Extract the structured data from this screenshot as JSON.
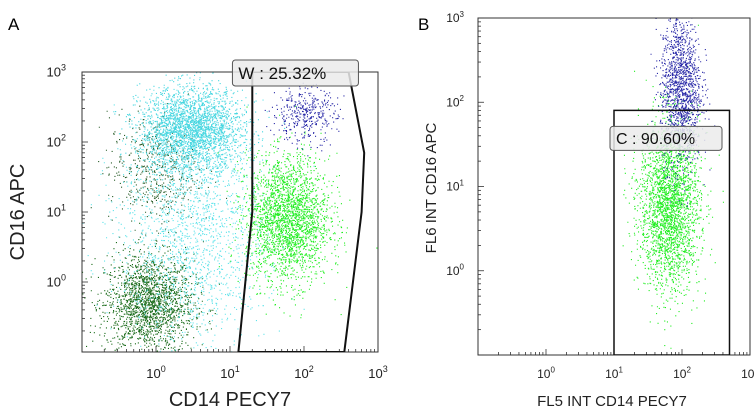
{
  "chart_data": [
    {
      "panel": "A",
      "type": "scatter",
      "xlabel": "CD14 PECY7",
      "ylabel": "CD16 APC",
      "xscale": "log",
      "yscale": "log",
      "xlim": [
        0.1,
        1000
      ],
      "ylim": [
        0.1,
        1000
      ],
      "xticks": [
        {
          "value": 1,
          "base": "10",
          "exp": "0"
        },
        {
          "value": 10,
          "base": "10",
          "exp": "1"
        },
        {
          "value": 100,
          "base": "10",
          "exp": "2"
        },
        {
          "value": 1000,
          "base": "10",
          "exp": "3"
        }
      ],
      "yticks": [
        {
          "value": 1,
          "base": "10",
          "exp": "0"
        },
        {
          "value": 10,
          "base": "10",
          "exp": "1"
        },
        {
          "value": 100,
          "base": "10",
          "exp": "2"
        },
        {
          "value": 1000,
          "base": "10",
          "exp": "3"
        }
      ],
      "populations": [
        {
          "color": "#1a6b1a",
          "count": 1900,
          "center": [
            0.8,
            0.5
          ],
          "spread": [
            0.3,
            0.35
          ]
        },
        {
          "color": "#2a5e2a",
          "count": 500,
          "center": [
            0.9,
            40
          ],
          "spread": [
            0.3,
            0.4
          ]
        },
        {
          "color": "#45d6e0",
          "count": 2600,
          "center": [
            3,
            150
          ],
          "spread": [
            0.35,
            0.3
          ]
        },
        {
          "color": "#5fe3ea",
          "count": 1700,
          "center": [
            3,
            5
          ],
          "spread": [
            0.5,
            0.8
          ]
        },
        {
          "color": "#22ee22",
          "count": 2400,
          "center": [
            60,
            8
          ],
          "spread": [
            0.28,
            0.45
          ]
        },
        {
          "color": "#2a2aa8",
          "count": 380,
          "center": [
            100,
            250
          ],
          "spread": [
            0.22,
            0.2
          ]
        }
      ],
      "gates": [
        {
          "label": "W : 25.32%",
          "polygon": [
            [
              20,
              1000
            ],
            [
              400,
              1000
            ],
            [
              650,
              70
            ],
            [
              600,
              10
            ],
            [
              350,
              0.1
            ],
            [
              13,
              0.1
            ],
            [
              20,
              10
            ]
          ]
        }
      ]
    },
    {
      "panel": "B",
      "type": "scatter",
      "xlabel": "FL5 INT CD14 PECY7",
      "ylabel": "FL6 INT CD16 APC",
      "xscale": "log",
      "yscale": "log",
      "xlim": [
        0.1,
        1000
      ],
      "ylim": [
        0.1,
        1000
      ],
      "xticks": [
        {
          "value": 1,
          "base": "10",
          "exp": "0"
        },
        {
          "value": 10,
          "base": "10",
          "exp": "1"
        },
        {
          "value": 100,
          "base": "10",
          "exp": "2"
        },
        {
          "value": 1000,
          "base": "10",
          "exp": "3"
        }
      ],
      "yticks": [
        {
          "value": 1,
          "base": "10",
          "exp": "0"
        },
        {
          "value": 10,
          "base": "10",
          "exp": "1"
        },
        {
          "value": 100,
          "base": "10",
          "exp": "2"
        },
        {
          "value": 1000,
          "base": "10",
          "exp": "3"
        }
      ],
      "populations": [
        {
          "color": "#22ee22",
          "count": 2600,
          "center": [
            65,
            6
          ],
          "spread": [
            0.22,
            0.5
          ]
        },
        {
          "color": "#2a2aa8",
          "count": 1400,
          "center": [
            95,
            150
          ],
          "spread": [
            0.15,
            0.45
          ]
        }
      ],
      "gates": [
        {
          "label": "C : 90.60%",
          "polygon": [
            [
              10,
              80
            ],
            [
              500,
              80
            ],
            [
              500,
              0.1
            ],
            [
              10,
              0.1
            ]
          ]
        }
      ]
    }
  ]
}
